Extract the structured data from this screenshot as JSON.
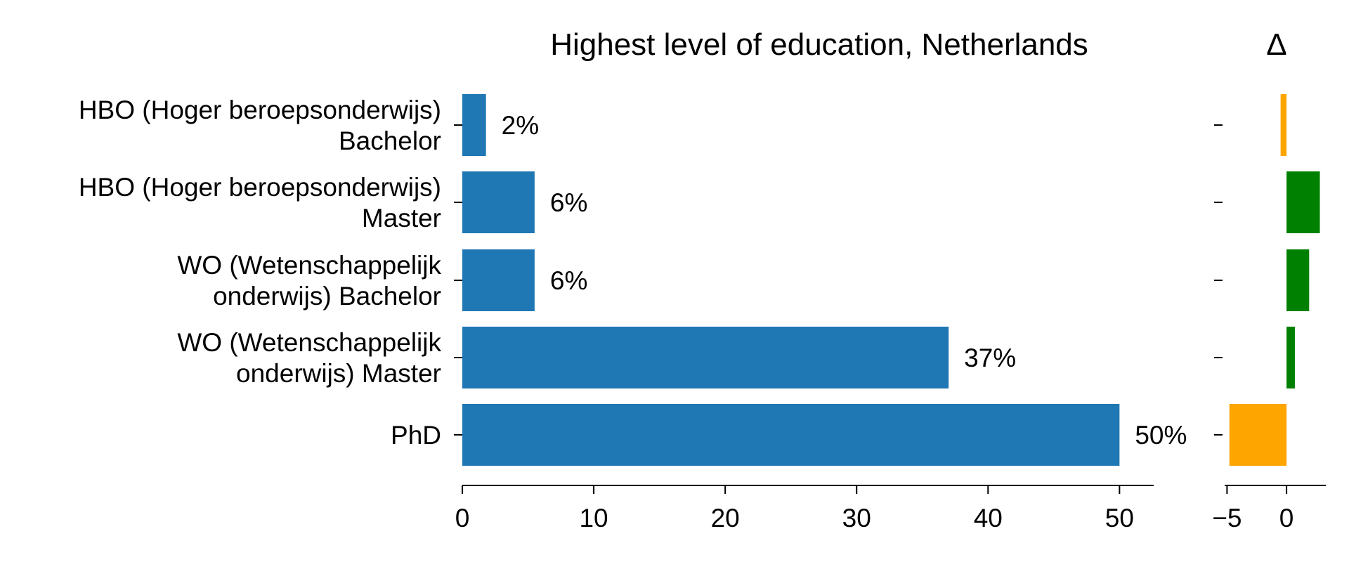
{
  "chart_data": [
    {
      "type": "bar",
      "orientation": "horizontal",
      "title": "Highest level of education, Netherlands",
      "categories": [
        [
          "HBO (Hoger beroepsonderwijs)",
          "Bachelor"
        ],
        [
          "HBO (Hoger beroepsonderwijs)",
          "Master"
        ],
        [
          "WO (Wetenschappelijk",
          "onderwijs) Bachelor"
        ],
        [
          "WO (Wetenschappelijk",
          "onderwijs) Master"
        ],
        [
          "PhD"
        ]
      ],
      "values": [
        1.8,
        5.5,
        5.5,
        37,
        50
      ],
      "data_labels": [
        "2%",
        "6%",
        "6%",
        "37%",
        "50%"
      ],
      "xlim": [
        0,
        52.6
      ],
      "xticks": [
        0,
        10,
        20,
        30,
        40,
        50
      ],
      "xtick_labels": [
        "0",
        "10",
        "20",
        "30",
        "40",
        "50"
      ],
      "color": "#1f77b4",
      "grid": false
    },
    {
      "type": "bar",
      "orientation": "horizontal",
      "title": "Δ",
      "categories": [
        "HBO Bachelor",
        "HBO Master",
        "WO Bachelor",
        "WO Master",
        "PhD"
      ],
      "values": [
        -0.5,
        2.8,
        1.9,
        0.7,
        -4.8
      ],
      "xlim": [
        -5.2,
        3.3
      ],
      "xticks": [
        -5,
        0
      ],
      "xtick_labels": [
        "−5",
        "0"
      ],
      "positive_color": "#008000",
      "negative_color": "#ffa500",
      "grid": false
    }
  ]
}
